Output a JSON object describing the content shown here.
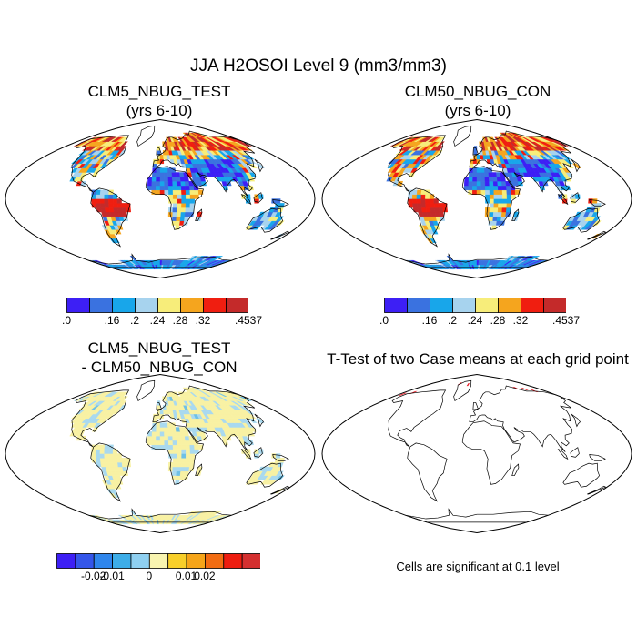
{
  "title": "JJA H2OSOI Level 9 (mm3/mm3)",
  "panels": [
    {
      "title_lines": [
        "CLM5_NBUG_TEST",
        "(yrs 6-10)"
      ],
      "fill": "abs",
      "colorbar": {
        "colors": [
          "#3d1ff5",
          "#3a72e0",
          "#18a6ea",
          "#a7d3ee",
          "#f7ed7a",
          "#f5a51e",
          "#f01e10",
          "#c42a2a"
        ],
        "labels": [
          ".0",
          ".16",
          ".2",
          ".24",
          ".28",
          ".32",
          ".4537"
        ]
      }
    },
    {
      "title_lines": [
        "CLM50_NBUG_CON",
        "(yrs 6-10)"
      ],
      "fill": "abs",
      "colorbar": {
        "colors": [
          "#3d1ff5",
          "#3a72e0",
          "#18a6ea",
          "#a7d3ee",
          "#f7ed7a",
          "#f5a51e",
          "#f01e10",
          "#c42a2a"
        ],
        "labels": [
          ".0",
          ".16",
          ".2",
          ".24",
          ".28",
          ".32",
          ".4537"
        ]
      }
    },
    {
      "title_lines": [
        "CLM5_NBUG_TEST",
        "- CLM50_NBUG_CON"
      ],
      "fill": "diff",
      "colorbar": {
        "colors": [
          "#3d1ff5",
          "#3456ea",
          "#2f86ec",
          "#3dade8",
          "#8fd0f1",
          "#f8f4b0",
          "#f8cf2a",
          "#f6a519",
          "#f26c12",
          "#ee1d10",
          "#d43030"
        ],
        "labels": [
          "-0.02",
          "-0.01",
          "0",
          "0.01",
          "0.02"
        ]
      }
    },
    {
      "title_lines": [
        "T-Test of two Case means at each grid point"
      ],
      "fill": "ttest",
      "footnote": "Cells are significant at 0.1 level"
    }
  ]
}
